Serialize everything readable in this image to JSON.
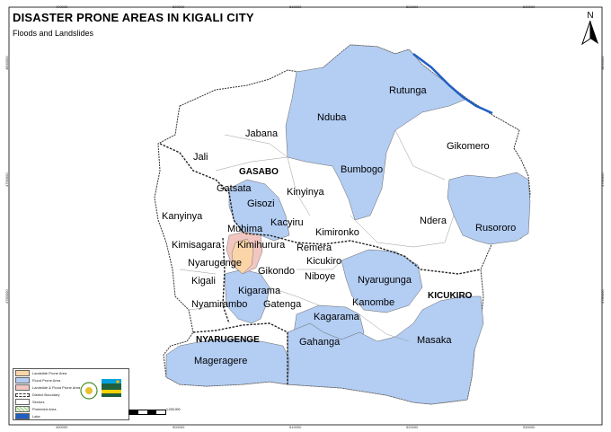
{
  "title": "DISASTER PRONE AREAS IN KIGALI CITY",
  "subtitle": "Floods and Landslides",
  "north_label": "N",
  "colors": {
    "flood": "#b3cdf3",
    "landslide": "#fbd5a8",
    "both": "#f2c6c1",
    "boundary": "#333333",
    "lake": "#1f5fc4",
    "frame": "#000000"
  },
  "grid_labels": {
    "top": [
      "490000",
      "500000",
      "510000",
      "520000",
      "530000"
    ],
    "bottom": [
      "490000",
      "500000",
      "510000",
      "520000",
      "530000"
    ],
    "left": [
      "4800000",
      "4790000",
      "4780000"
    ],
    "right": [
      "4800000",
      "4790000",
      "4780000"
    ]
  },
  "districts": [
    {
      "name": "GASABO"
    },
    {
      "name": "NYARUGENGE"
    },
    {
      "name": "KICUKIRO"
    }
  ],
  "sectors": [
    "Rutunga",
    "Nduba",
    "Jabana",
    "Gikomero",
    "Jali",
    "Bumbogo",
    "Gatsata",
    "Kinyinya",
    "Gisozi",
    "Ndera",
    "Rusororo",
    "Kanyinya",
    "Kacyiru",
    "Kimironko",
    "Muhima",
    "Kimihurura",
    "Kimisagara",
    "Remera",
    "Nyarugenge",
    "Kicukiro",
    "Gikondo",
    "Niboye",
    "Nyarugunga",
    "Kigali",
    "Kigarama",
    "Nyamirambo",
    "Gatenga",
    "Kanombe",
    "Kagarama",
    "Gahanga",
    "Masaka",
    "Mageragere"
  ],
  "legend": [
    {
      "label": "Landslide Prone Area",
      "color": "#fbd5a8"
    },
    {
      "label": "Flood Prone Area",
      "color": "#b3cdf3"
    },
    {
      "label": "Landslide & Flood Prone Area",
      "color": "#f2c6c1"
    },
    {
      "label": "District Boundary",
      "color": "#333333"
    },
    {
      "label": "Sectors",
      "color": "#ffffff"
    },
    {
      "label": "Protected Area",
      "color": "#d6efc4"
    },
    {
      "label": "Lake",
      "color": "#1f5fc4"
    }
  ],
  "scale_label": "1:200,000"
}
